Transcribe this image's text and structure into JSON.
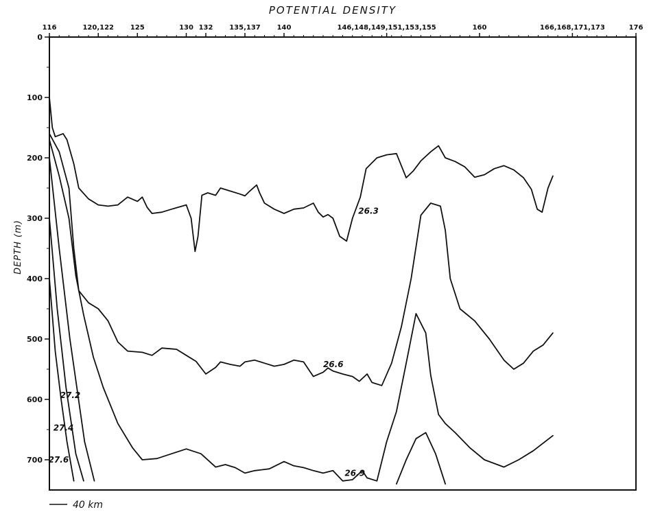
{
  "chart_data": {
    "type": "line",
    "title": "POTENTIAL DENSITY",
    "ylabel": "DEPTH (m)",
    "xlabel": "",
    "scale_bar": "40 km",
    "x_axis_position": "top",
    "station_ticks": [
      {
        "label": "116",
        "x": 116
      },
      {
        "label": "120,122",
        "x": 121
      },
      {
        "label": "125",
        "x": 125
      },
      {
        "label": "130",
        "x": 130
      },
      {
        "label": "132",
        "x": 132
      },
      {
        "label": "135,137",
        "x": 136
      },
      {
        "label": "140",
        "x": 140
      },
      {
        "label": "146,148,149,151,153,155",
        "x": 150.5
      },
      {
        "label": "160",
        "x": 160
      },
      {
        "label": "166,168,171,173",
        "x": 169.5
      },
      {
        "label": "176",
        "x": 176
      }
    ],
    "xlim": [
      116,
      176
    ],
    "ylim": [
      0,
      750
    ],
    "y_inverted": true,
    "y_ticks": [
      0,
      100,
      200,
      300,
      400,
      500,
      600,
      700
    ],
    "grid": false,
    "series": [
      {
        "name": "26.3",
        "label_at": [
          147.6,
          288
        ],
        "points": [
          [
            116,
            100
          ],
          [
            116.3,
            150
          ],
          [
            116.6,
            165
          ],
          [
            117.4,
            160
          ],
          [
            117.8,
            170
          ],
          [
            118.5,
            210
          ],
          [
            119,
            250
          ],
          [
            120,
            268
          ],
          [
            121,
            278
          ],
          [
            122,
            280
          ],
          [
            123,
            278
          ],
          [
            124,
            265
          ],
          [
            125,
            272
          ],
          [
            125.5,
            265
          ],
          [
            126,
            282
          ],
          [
            126.5,
            292
          ],
          [
            127.5,
            290
          ],
          [
            128.5,
            285
          ],
          [
            130,
            278
          ],
          [
            130.5,
            300
          ],
          [
            130.9,
            355
          ],
          [
            131.2,
            330
          ],
          [
            131.6,
            262
          ],
          [
            132.2,
            258
          ],
          [
            133,
            262
          ],
          [
            133.5,
            250
          ],
          [
            134.5,
            255
          ],
          [
            135.5,
            260
          ],
          [
            136,
            263
          ],
          [
            136.5,
            255
          ],
          [
            137.2,
            245
          ],
          [
            137.5,
            258
          ],
          [
            138,
            275
          ],
          [
            139,
            285
          ],
          [
            140,
            292
          ],
          [
            141,
            285
          ],
          [
            142,
            283
          ],
          [
            143,
            275
          ],
          [
            143.5,
            290
          ],
          [
            144,
            298
          ],
          [
            144.5,
            294
          ],
          [
            145,
            300
          ],
          [
            145.7,
            330
          ],
          [
            146.4,
            338
          ],
          [
            147,
            300
          ],
          [
            147.8,
            265
          ],
          [
            148.4,
            218
          ],
          [
            149.5,
            200
          ],
          [
            150.5,
            195
          ],
          [
            151.5,
            193
          ],
          [
            152.5,
            233
          ],
          [
            153.2,
            222
          ],
          [
            154,
            205
          ],
          [
            155,
            190
          ],
          [
            155.8,
            180
          ],
          [
            156.5,
            200
          ],
          [
            157.5,
            206
          ],
          [
            158.5,
            215
          ],
          [
            159.5,
            232
          ],
          [
            160.5,
            228
          ],
          [
            161.5,
            218
          ],
          [
            162.5,
            213
          ],
          [
            163.5,
            220
          ],
          [
            164.5,
            233
          ],
          [
            165.3,
            252
          ],
          [
            165.9,
            285
          ],
          [
            166.4,
            290
          ],
          [
            167,
            250
          ],
          [
            167.5,
            230
          ]
        ]
      },
      {
        "name": "26.6",
        "label_at": [
          144,
          542
        ],
        "points": [
          [
            116,
            160
          ],
          [
            117,
            190
          ],
          [
            118,
            250
          ],
          [
            118.5,
            350
          ],
          [
            119,
            420
          ],
          [
            120,
            440
          ],
          [
            121,
            450
          ],
          [
            122,
            470
          ],
          [
            123,
            505
          ],
          [
            124,
            520
          ],
          [
            125.5,
            522
          ],
          [
            126.5,
            527
          ],
          [
            127.5,
            515
          ],
          [
            129,
            517
          ],
          [
            130,
            527
          ],
          [
            131,
            537
          ],
          [
            132,
            558
          ],
          [
            133,
            547
          ],
          [
            133.5,
            538
          ],
          [
            134.5,
            542
          ],
          [
            135.5,
            545
          ],
          [
            136,
            538
          ],
          [
            137,
            535
          ],
          [
            138,
            540
          ],
          [
            139,
            545
          ],
          [
            140,
            542
          ],
          [
            141,
            535
          ],
          [
            142,
            538
          ],
          [
            142.5,
            550
          ],
          [
            143,
            562
          ],
          [
            144,
            555
          ],
          [
            144.5,
            548
          ],
          [
            145,
            553
          ],
          [
            146,
            558
          ],
          [
            147,
            562
          ],
          [
            147.7,
            570
          ],
          [
            148.5,
            558
          ],
          [
            149,
            572
          ],
          [
            150,
            577
          ],
          [
            151,
            540
          ],
          [
            152,
            480
          ],
          [
            153,
            400
          ],
          [
            154,
            295
          ],
          [
            155,
            275
          ],
          [
            156,
            280
          ],
          [
            156.5,
            320
          ],
          [
            157,
            400
          ],
          [
            158,
            450
          ],
          [
            159.5,
            470
          ],
          [
            161,
            500
          ],
          [
            162.5,
            535
          ],
          [
            163.5,
            550
          ],
          [
            164.5,
            540
          ],
          [
            165.5,
            520
          ],
          [
            166.5,
            510
          ],
          [
            167.5,
            490
          ]
        ]
      },
      {
        "name": "26.9",
        "label_at": [
          146.2,
          722
        ],
        "points": [
          [
            116,
            170
          ],
          [
            117,
            230
          ],
          [
            118,
            300
          ],
          [
            118.7,
            395
          ],
          [
            119.5,
            460
          ],
          [
            120.5,
            530
          ],
          [
            121.5,
            580
          ],
          [
            123,
            640
          ],
          [
            124.5,
            680
          ],
          [
            125.5,
            700
          ],
          [
            127,
            698
          ],
          [
            128.5,
            690
          ],
          [
            130,
            682
          ],
          [
            131.5,
            690
          ],
          [
            133,
            712
          ],
          [
            134,
            708
          ],
          [
            135,
            713
          ],
          [
            136,
            722
          ],
          [
            137,
            718
          ],
          [
            138.5,
            715
          ],
          [
            140,
            703
          ],
          [
            141,
            710
          ],
          [
            142,
            713
          ],
          [
            143,
            718
          ],
          [
            144,
            722
          ],
          [
            145,
            718
          ],
          [
            146,
            735
          ],
          [
            147,
            733
          ],
          [
            148,
            718
          ],
          [
            148.5,
            730
          ],
          [
            149.5,
            735
          ],
          [
            150.5,
            670
          ],
          [
            151.5,
            620
          ],
          [
            152.5,
            540
          ],
          [
            153.5,
            458
          ],
          [
            154.5,
            490
          ],
          [
            155,
            560
          ],
          [
            155.8,
            625
          ],
          [
            156.5,
            640
          ],
          [
            157.5,
            655
          ],
          [
            159,
            680
          ],
          [
            160.5,
            700
          ],
          [
            162.5,
            712
          ],
          [
            164,
            700
          ],
          [
            165.5,
            685
          ],
          [
            167.5,
            660
          ]
        ]
      },
      {
        "name": "",
        "points": [
          [
            151.5,
            740
          ],
          [
            152.5,
            700
          ],
          [
            153.5,
            665
          ],
          [
            154.5,
            655
          ],
          [
            155.5,
            690
          ],
          [
            156.5,
            740
          ]
        ]
      },
      {
        "name": "27.2",
        "label_at": [
          117.1,
          593
        ],
        "points": [
          [
            116,
            200
          ],
          [
            117,
            350
          ],
          [
            118.1,
            500
          ],
          [
            119.6,
            670
          ],
          [
            120.6,
            735
          ]
        ]
      },
      {
        "name": "27.4",
        "label_at": [
          116.4,
          647
        ],
        "points": [
          [
            116,
            300
          ],
          [
            116.8,
            450
          ],
          [
            117.7,
            580
          ],
          [
            118.7,
            690
          ],
          [
            119.5,
            735
          ]
        ]
      },
      {
        "name": "27.6",
        "label_at": [
          115.9,
          700
        ],
        "points": [
          [
            116,
            400
          ],
          [
            116.6,
            520
          ],
          [
            117.2,
            600
          ],
          [
            117.8,
            670
          ],
          [
            118.5,
            735
          ]
        ]
      }
    ]
  }
}
